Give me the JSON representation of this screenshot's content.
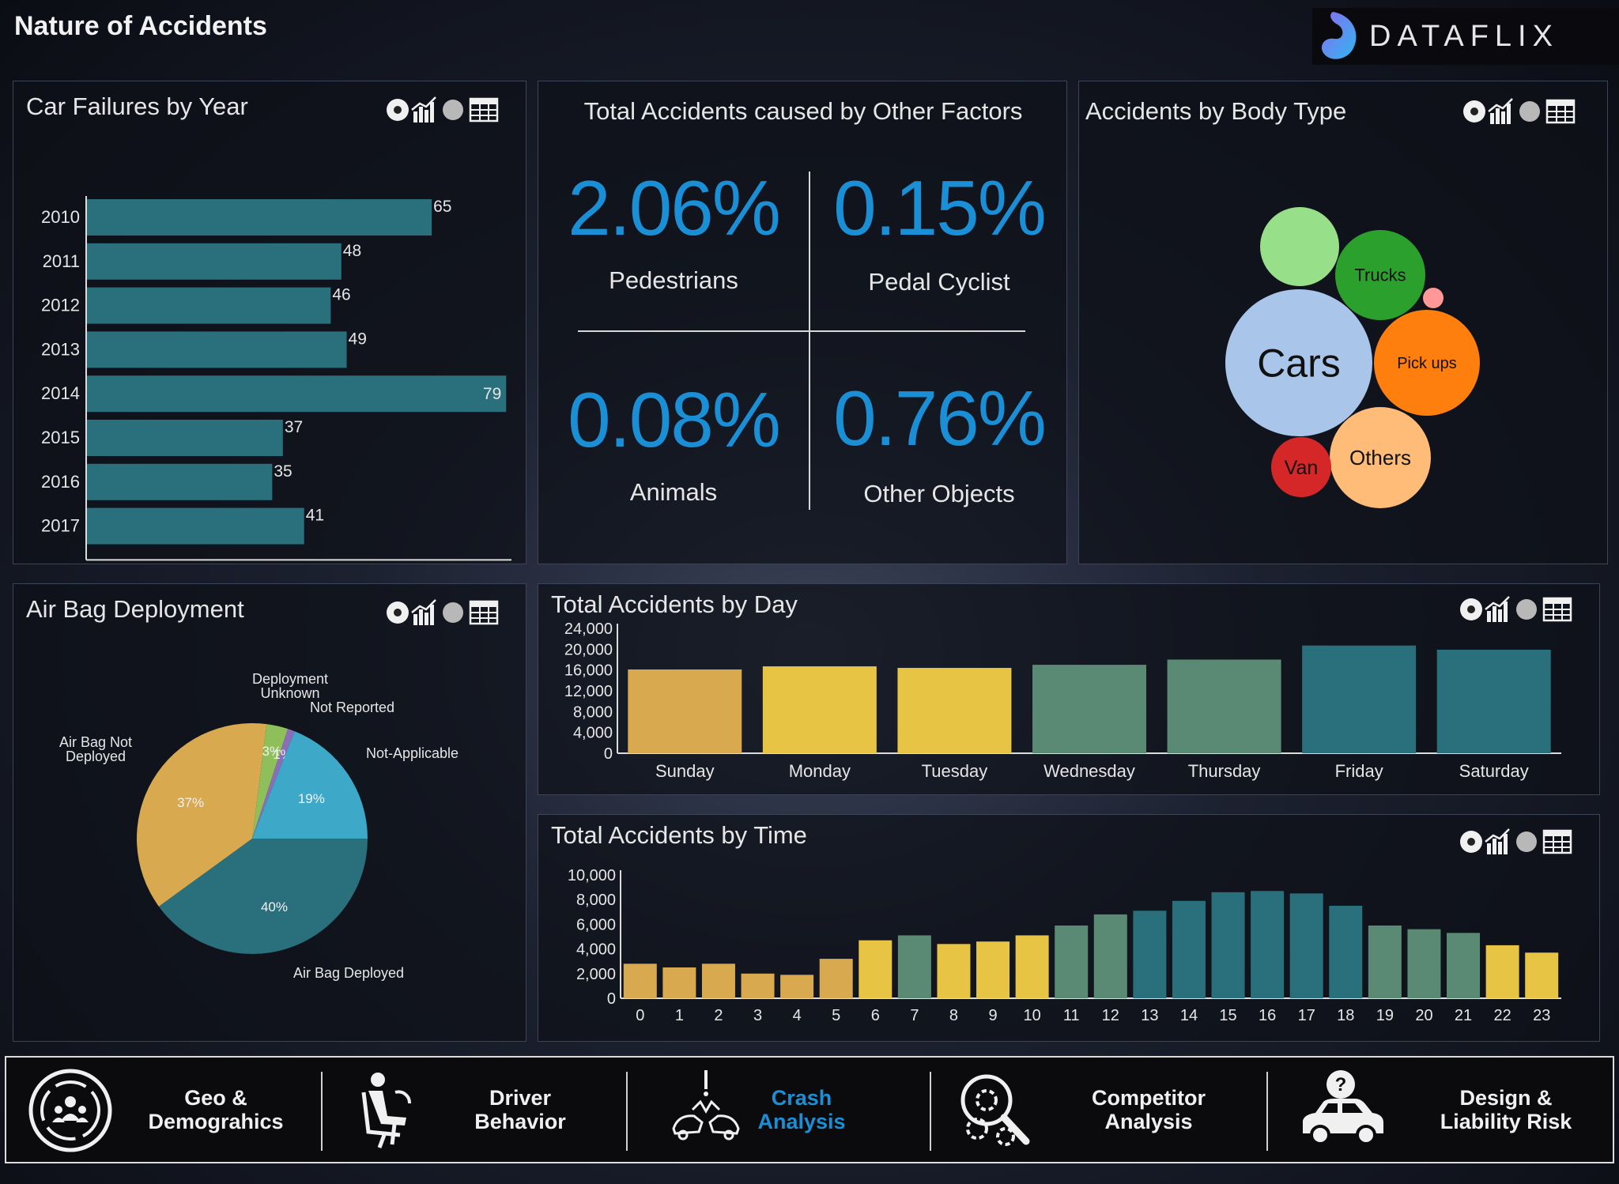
{
  "page": {
    "title": "Nature of Accidents"
  },
  "brand": {
    "name": "DATAFLIX"
  },
  "colors": {
    "teal": "#2a6f7c",
    "gold": "#d8a94e",
    "yellow": "#e8c444",
    "green": "#5a8a73",
    "kpi_blue": "#1a8fd6"
  },
  "car_failures": {
    "title": "Car Failures by Year",
    "chart_data": {
      "type": "bar",
      "orientation": "horizontal",
      "categories": [
        "2010",
        "2011",
        "2012",
        "2013",
        "2014",
        "2015",
        "2016",
        "2017"
      ],
      "values": [
        65,
        48,
        46,
        49,
        79,
        37,
        35,
        41
      ],
      "xlim": [
        0,
        80
      ],
      "xticks": [
        "0",
        "40",
        "80"
      ],
      "color": "#2a6f7c"
    }
  },
  "other_factors": {
    "title": "Total Accidents caused by Other Factors",
    "items": [
      {
        "value": "2.06%",
        "label": "Pedestrians"
      },
      {
        "value": "0.15%",
        "label": "Pedal Cyclist"
      },
      {
        "value": "0.08%",
        "label": "Animals"
      },
      {
        "value": "0.76%",
        "label": "Other Objects"
      }
    ]
  },
  "body_type": {
    "title": "Accidents by Body Type",
    "bubbles": [
      {
        "label": "Cars",
        "color": "#a9c6ea"
      },
      {
        "label": "Trucks",
        "color": "#2ca02c"
      },
      {
        "label": "Pick ups",
        "color": "#ff7f0e"
      },
      {
        "label": "Others",
        "color": "#ffbb78"
      },
      {
        "label": "Van",
        "color": "#d62728"
      },
      {
        "label": "",
        "color": "#98df8a"
      },
      {
        "label": "",
        "color": "#ff9896"
      }
    ]
  },
  "airbag": {
    "title": "Air Bag Deployment",
    "chart_data": {
      "type": "pie",
      "slices": [
        {
          "name": "Air Bag Deployed",
          "value": 40,
          "label": "40%",
          "color": "#2a6f7c"
        },
        {
          "name": "Air Bag Not Deployed",
          "value": 37,
          "label": "37%",
          "color": "#d8a94e"
        },
        {
          "name": "Deployment Unknown",
          "value": 3,
          "label": "3%",
          "color": "#8fbf5a"
        },
        {
          "name": "Not Reported",
          "value": 1,
          "label": "1%",
          "color": "#8a6fb8"
        },
        {
          "name": "Not-Applicable",
          "value": 19,
          "label": "19%",
          "color": "#3ea8c8"
        }
      ],
      "legend_labels": [
        "Deployment Unknown",
        "Not Reported",
        "Not-Applicable",
        "Air Bag Not Deployed",
        "Air Bag Deployed"
      ]
    }
  },
  "by_day": {
    "title": "Total Accidents by Day",
    "chart_data": {
      "type": "bar",
      "categories": [
        "Sunday",
        "Monday",
        "Tuesday",
        "Wednesday",
        "Thursday",
        "Friday",
        "Saturday"
      ],
      "values": [
        16100,
        16700,
        16400,
        17000,
        18000,
        20700,
        19900
      ],
      "colors": [
        "#d8a94e",
        "#e8c444",
        "#e8c444",
        "#5a8a73",
        "#5a8a73",
        "#2a6f7c",
        "#2a6f7c"
      ],
      "ylim": [
        0,
        24000
      ],
      "yticks": [
        "0",
        "4,000",
        "8,000",
        "12,000",
        "16,000",
        "20,000",
        "24,000"
      ]
    }
  },
  "by_time": {
    "title": "Total Accidents by Time",
    "chart_data": {
      "type": "bar",
      "categories": [
        "0",
        "1",
        "2",
        "3",
        "4",
        "5",
        "6",
        "7",
        "8",
        "9",
        "10",
        "11",
        "12",
        "13",
        "14",
        "15",
        "16",
        "17",
        "18",
        "19",
        "20",
        "21",
        "22",
        "23"
      ],
      "values": [
        2800,
        2500,
        2800,
        2000,
        1900,
        3200,
        4700,
        5100,
        4400,
        4600,
        5100,
        5900,
        6800,
        7100,
        7900,
        8600,
        8700,
        8500,
        7500,
        5900,
        5600,
        5300,
        4300,
        3700
      ],
      "colors": [
        "#d8a94e",
        "#d8a94e",
        "#d8a94e",
        "#d8a94e",
        "#d8a94e",
        "#d8a94e",
        "#e8c444",
        "#5a8a73",
        "#e8c444",
        "#e8c444",
        "#e8c444",
        "#5a8a73",
        "#5a8a73",
        "#2a6f7c",
        "#2a6f7c",
        "#2a6f7c",
        "#2a6f7c",
        "#2a6f7c",
        "#2a6f7c",
        "#5a8a73",
        "#5a8a73",
        "#5a8a73",
        "#e8c444",
        "#e8c444"
      ],
      "ylim": [
        0,
        10000
      ],
      "yticks": [
        "0",
        "2,000",
        "4,000",
        "6,000",
        "8,000",
        "10,000"
      ]
    }
  },
  "nav": {
    "items": [
      {
        "label": "Geo &\nDemograhics",
        "icon": "people-circle-icon",
        "active": false
      },
      {
        "label": "Driver\nBehavior",
        "icon": "driver-seat-icon",
        "active": false
      },
      {
        "label": "Crash\nAnalysis",
        "icon": "car-crash-icon",
        "active": true
      },
      {
        "label": "Competitor\nAnalysis",
        "icon": "magnify-gears-icon",
        "active": false
      },
      {
        "label": "Design &\nLiability Risk",
        "icon": "car-question-icon",
        "active": false
      }
    ]
  }
}
